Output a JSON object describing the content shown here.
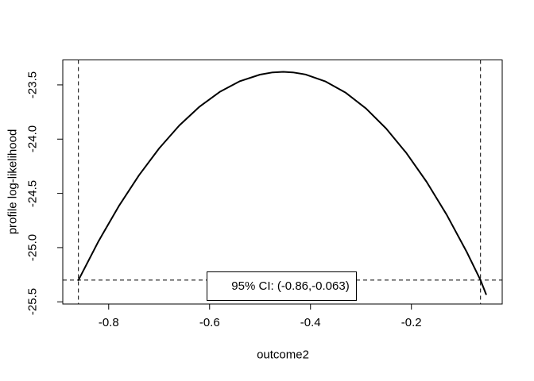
{
  "figure": {
    "background_color": "#ffffff",
    "line_color": "#000000"
  },
  "chart_data": {
    "type": "line",
    "title": "",
    "xlabel": "outcome2",
    "ylabel": "profile log-likelihood",
    "xlim": [
      -0.891,
      -0.02
    ],
    "ylim": [
      -25.52,
      -23.27
    ],
    "grid": false,
    "x_ticks": [
      -0.8,
      -0.6,
      -0.4,
      -0.2
    ],
    "x_tick_labels": [
      "-0.8",
      "-0.6",
      "-0.4",
      "-0.2"
    ],
    "y_ticks": [
      -23.5,
      -24.0,
      -24.5,
      -25.0,
      -25.5
    ],
    "y_tick_labels": [
      "-23.5",
      "-24.0",
      "-24.5",
      "-25.0",
      "-25.5"
    ],
    "curve": {
      "x": [
        -0.86,
        -0.82,
        -0.78,
        -0.74,
        -0.7,
        -0.66,
        -0.62,
        -0.58,
        -0.54,
        -0.5,
        -0.475,
        -0.454,
        -0.435,
        -0.41,
        -0.37,
        -0.33,
        -0.29,
        -0.25,
        -0.21,
        -0.17,
        -0.13,
        -0.09,
        -0.063,
        -0.052
      ],
      "y": [
        -25.3,
        -24.94,
        -24.618,
        -24.333,
        -24.085,
        -23.874,
        -23.701,
        -23.565,
        -23.466,
        -23.405,
        -23.385,
        -23.38,
        -23.385,
        -23.404,
        -23.469,
        -23.573,
        -23.718,
        -23.903,
        -24.128,
        -24.393,
        -24.698,
        -25.044,
        -25.3,
        -25.43
      ]
    },
    "peak": {
      "x": -0.454,
      "y": -23.38
    },
    "reference_lines": {
      "style": "dashed",
      "vertical": [
        -0.86,
        -0.063
      ],
      "horizontal": [
        -25.3
      ]
    },
    "ci": {
      "level": "95%",
      "lower": -0.86,
      "upper": -0.063
    },
    "annotation": {
      "label": "95% CI: (-0.86,-0.063)"
    },
    "legend_position": "bottom-center-inside"
  }
}
